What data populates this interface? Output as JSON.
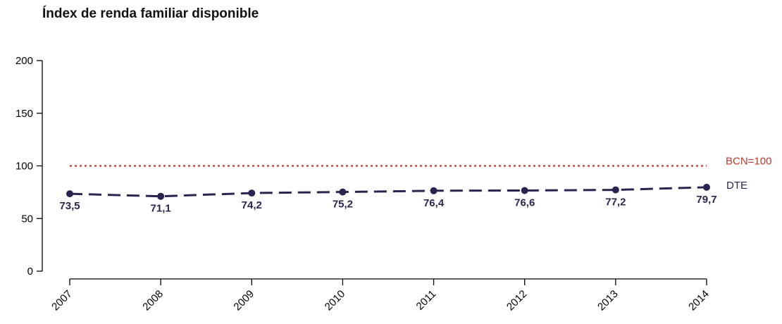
{
  "chart_data": {
    "type": "line",
    "title": "Índex de renda familiar disponible",
    "xlabel": "",
    "ylabel": "",
    "ylim": [
      0,
      200
    ],
    "yticks": [
      0,
      50,
      100,
      150,
      200
    ],
    "categories": [
      "2007",
      "2008",
      "2009",
      "2010",
      "2011",
      "2012",
      "2013",
      "2014"
    ],
    "series": [
      {
        "name": "DTE",
        "values": [
          73.5,
          71.1,
          74.2,
          75.2,
          76.4,
          76.6,
          77.2,
          79.7
        ],
        "labels": [
          "73,5",
          "71,1",
          "74,2",
          "75,2",
          "76,4",
          "76,6",
          "77,2",
          "79,7"
        ],
        "color": "#2e2350",
        "style": "dashed",
        "markers": true
      },
      {
        "name": "BCN=100",
        "values": [
          100,
          100,
          100,
          100,
          100,
          100,
          100,
          100
        ],
        "color": "#c0392b",
        "style": "dotted",
        "markers": false
      }
    ],
    "grid": false,
    "legend": "right end of lines"
  }
}
